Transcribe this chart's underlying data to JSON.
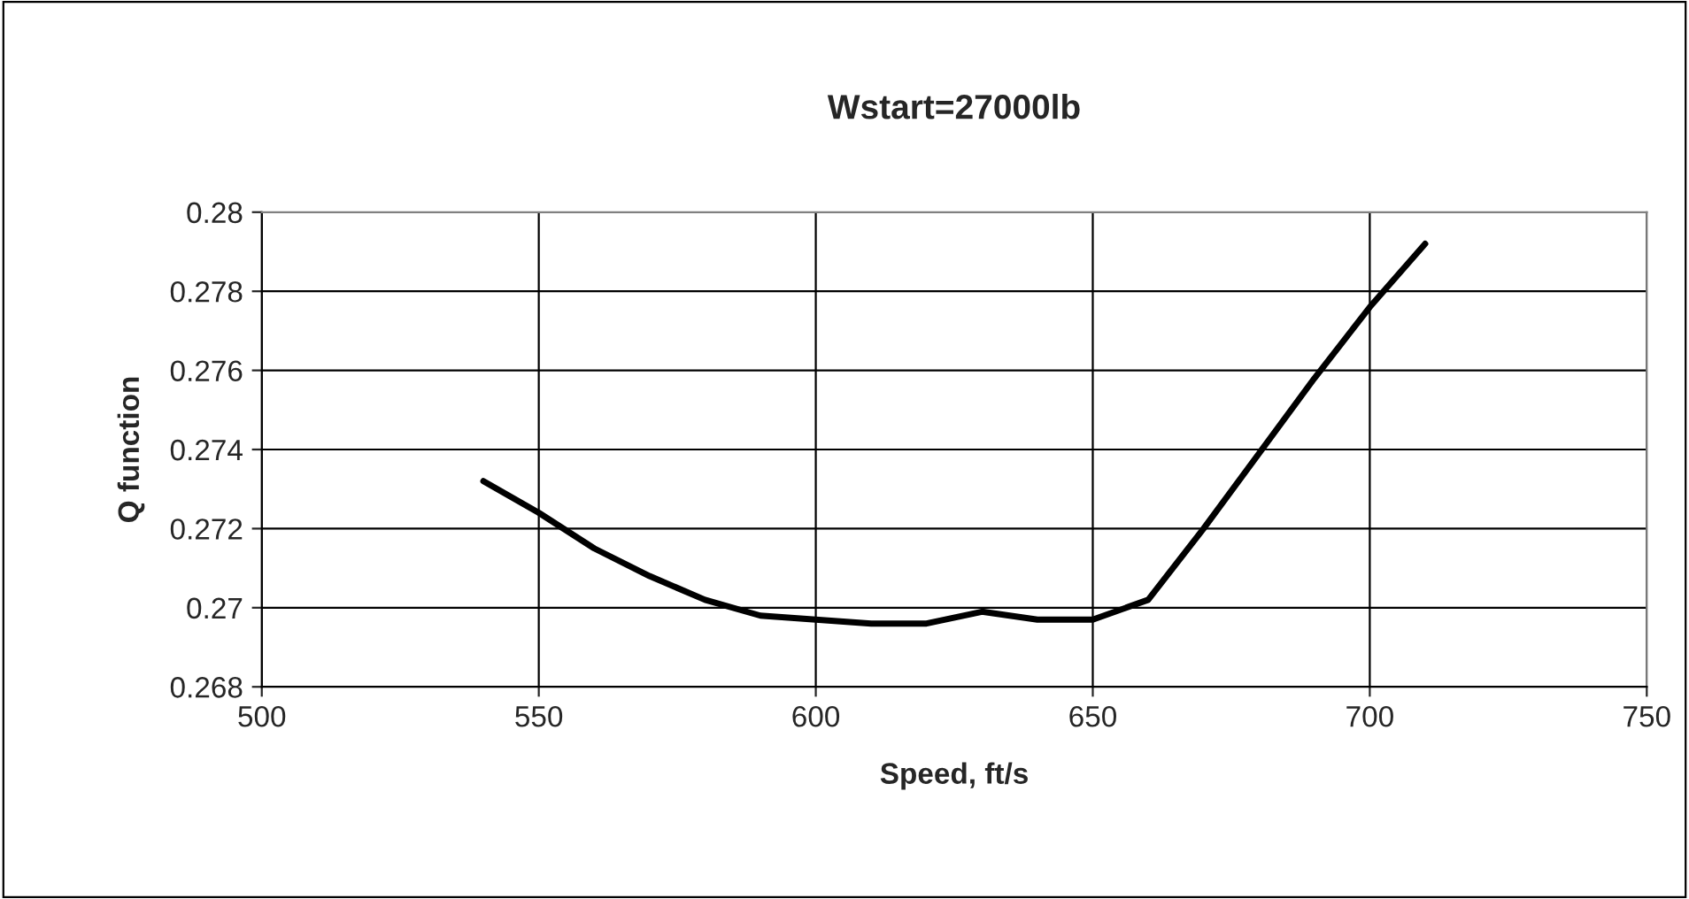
{
  "chart_data": {
    "type": "line",
    "title": "Wstart=27000lb",
    "xlabel": "Speed, ft/s",
    "ylabel": "Q function",
    "x": [
      540,
      550,
      560,
      570,
      580,
      590,
      600,
      610,
      620,
      630,
      640,
      650,
      660,
      670,
      680,
      690,
      700,
      710
    ],
    "series": [
      {
        "color": "#000000",
        "values": [
          0.2732,
          0.2724,
          0.2715,
          0.2708,
          0.2702,
          0.2698,
          0.2697,
          0.2696,
          0.2696,
          0.2699,
          0.2697,
          0.2697,
          0.2702,
          0.272,
          0.2739,
          0.2758,
          0.2776,
          0.2792
        ]
      }
    ],
    "xlim": [
      500,
      750
    ],
    "xticks": [
      500,
      550,
      600,
      650,
      700,
      750
    ],
    "ylim": [
      0.268,
      0.28
    ],
    "yticks": [
      0.268,
      0.27,
      0.272,
      0.274,
      0.276,
      0.278,
      0.28
    ],
    "grid": true,
    "marker": "none",
    "line_style": "solid",
    "legend": false
  }
}
